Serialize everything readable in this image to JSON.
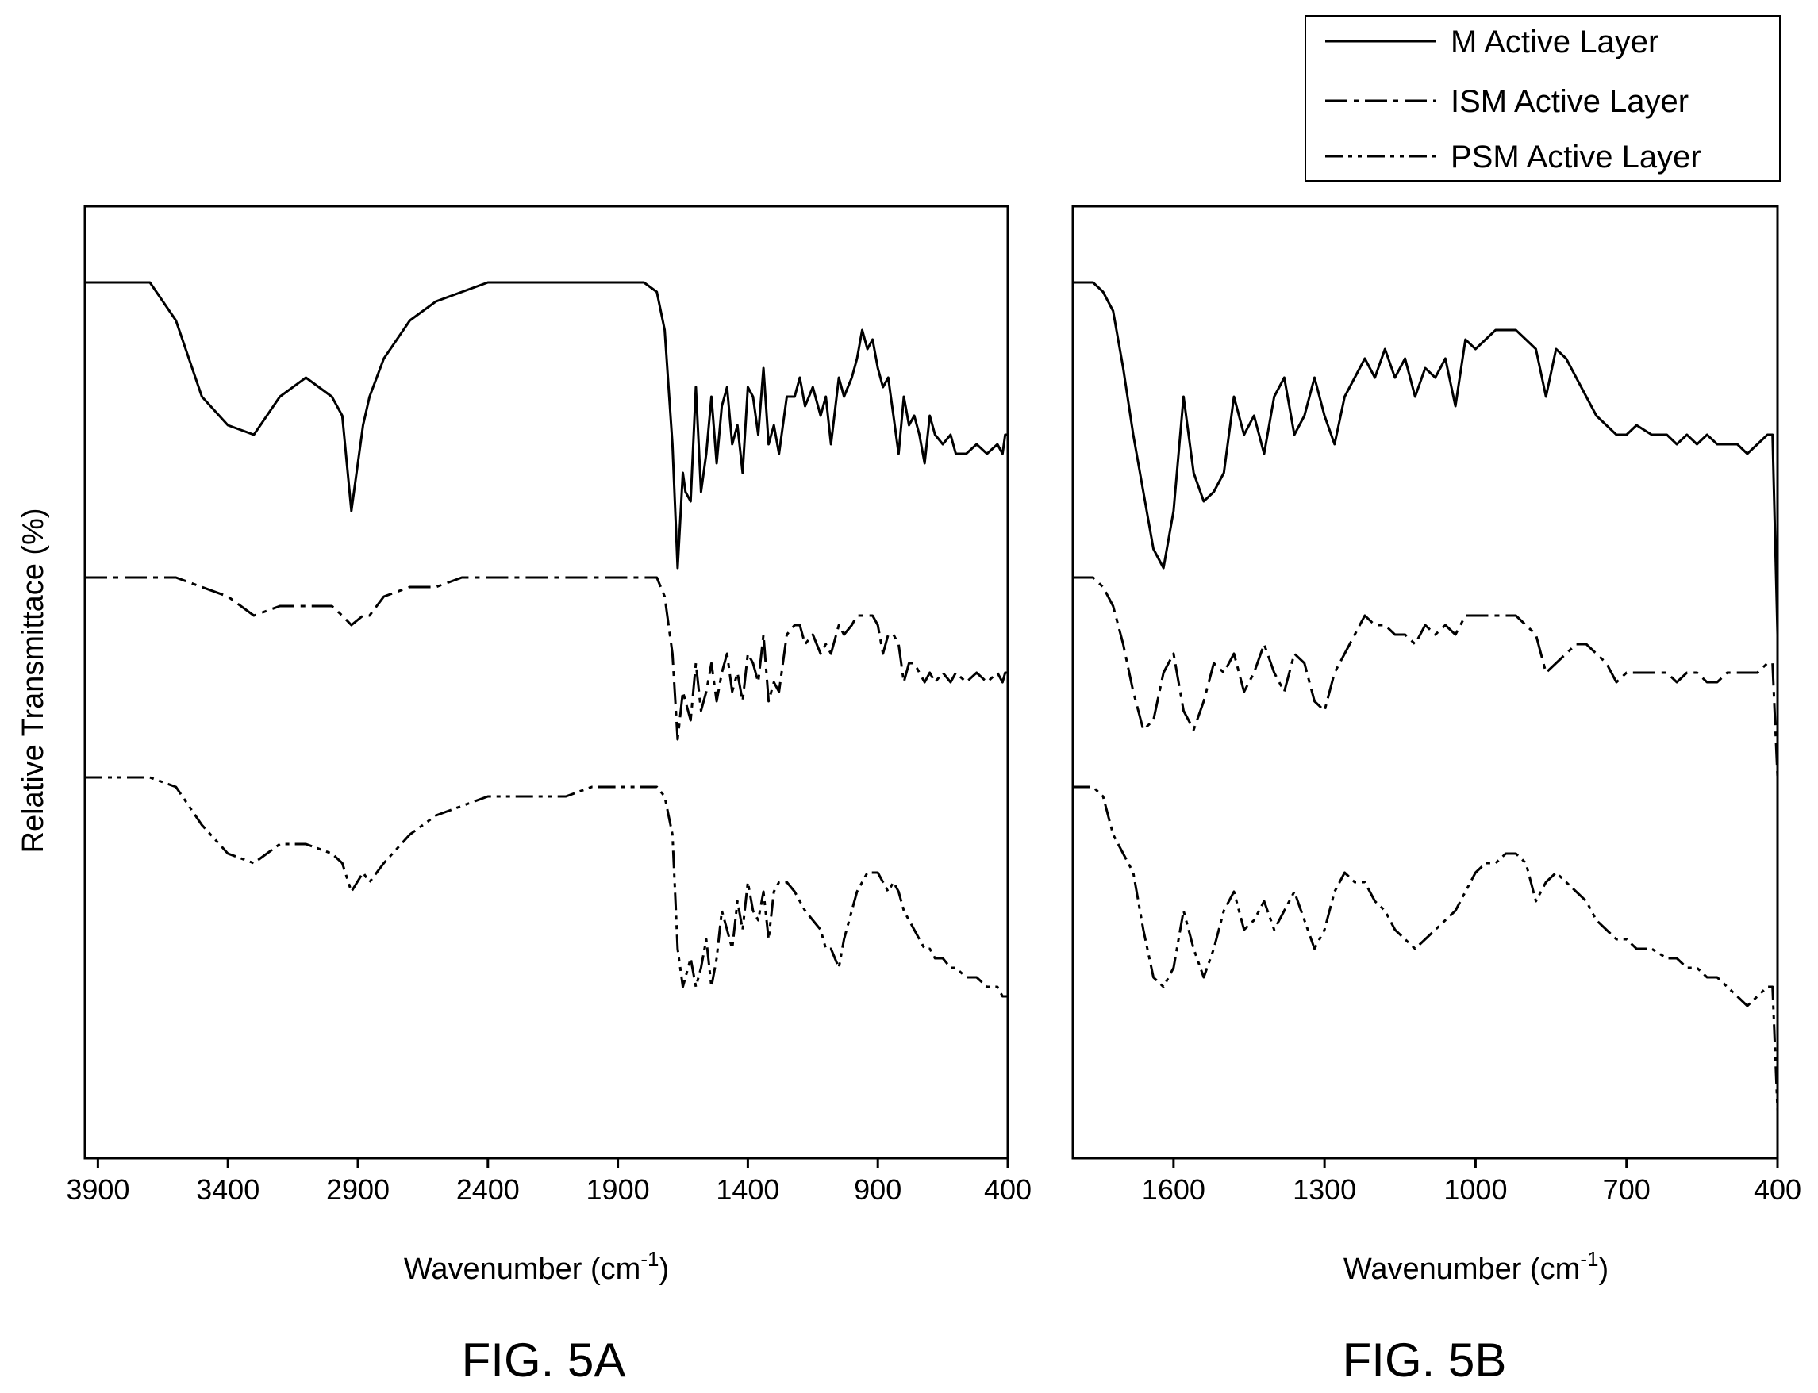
{
  "legend": {
    "entries": [
      {
        "label": "M Active Layer",
        "dash": "solid"
      },
      {
        "label": "ISM Active Layer",
        "dash": "dash-dot"
      },
      {
        "label": "PSM Active Layer",
        "dash": "dash-dot-dot"
      }
    ],
    "placement": "top-right"
  },
  "ylabel": "Relative Transmittace (%)",
  "chart_data": [
    {
      "type": "line",
      "panel": "FIG. 5A",
      "xlabel_main": "Wavenumber (cm",
      "xlabel_sup": "-1",
      "xlabel_end": ")",
      "xlim": [
        3950,
        400
      ],
      "ylim": [
        0,
        100
      ],
      "xticks": [
        3900,
        3400,
        2900,
        2400,
        1900,
        1400,
        900,
        400
      ],
      "grid": false,
      "yticks_shown": false,
      "series": [
        {
          "name": "M Active Layer",
          "dash": "solid",
          "x": [
            3950,
            3700,
            3600,
            3500,
            3400,
            3300,
            3200,
            3100,
            3000,
            2960,
            2925,
            2880,
            2855,
            2800,
            2700,
            2600,
            2500,
            2400,
            2300,
            2200,
            2100,
            2000,
            1900,
            1800,
            1750,
            1720,
            1690,
            1670,
            1650,
            1640,
            1620,
            1600,
            1580,
            1560,
            1540,
            1520,
            1500,
            1480,
            1460,
            1440,
            1420,
            1400,
            1380,
            1360,
            1340,
            1320,
            1300,
            1280,
            1250,
            1220,
            1200,
            1180,
            1150,
            1120,
            1100,
            1080,
            1050,
            1030,
            1000,
            980,
            960,
            940,
            920,
            900,
            880,
            860,
            840,
            820,
            800,
            780,
            760,
            740,
            720,
            700,
            680,
            650,
            620,
            600,
            560,
            520,
            480,
            440,
            420,
            410,
            400
          ],
          "y": [
            92,
            92,
            88,
            80,
            77,
            76,
            80,
            82,
            80,
            78,
            68,
            77,
            80,
            84,
            88,
            90,
            91,
            92,
            92,
            92,
            92,
            92,
            92,
            92,
            91,
            87,
            75,
            62,
            72,
            70,
            69,
            81,
            70,
            74,
            80,
            73,
            79,
            81,
            75,
            77,
            72,
            81,
            80,
            76,
            83,
            75,
            77,
            74,
            80,
            80,
            82,
            79,
            81,
            78,
            80,
            75,
            82,
            80,
            82,
            84,
            87,
            85,
            86,
            83,
            81,
            82,
            78,
            74,
            80,
            77,
            78,
            76,
            73,
            78,
            76,
            75,
            76,
            74,
            74,
            75,
            74,
            75,
            74,
            76,
            76
          ]
        },
        {
          "name": "ISM Active Layer",
          "dash": "dash-dot",
          "x": [
            3950,
            3700,
            3600,
            3500,
            3400,
            3300,
            3200,
            3100,
            3000,
            2960,
            2925,
            2880,
            2855,
            2800,
            2700,
            2600,
            2500,
            2400,
            2300,
            2200,
            2100,
            2000,
            1900,
            1800,
            1750,
            1720,
            1690,
            1670,
            1650,
            1640,
            1620,
            1600,
            1580,
            1560,
            1540,
            1520,
            1500,
            1480,
            1460,
            1440,
            1420,
            1400,
            1380,
            1360,
            1340,
            1320,
            1300,
            1280,
            1250,
            1220,
            1200,
            1180,
            1150,
            1120,
            1100,
            1080,
            1050,
            1030,
            1000,
            980,
            960,
            940,
            920,
            900,
            880,
            860,
            840,
            820,
            800,
            780,
            760,
            740,
            720,
            700,
            680,
            650,
            620,
            600,
            560,
            520,
            480,
            440,
            420,
            410,
            400
          ],
          "y": [
            61,
            61,
            61,
            60,
            59,
            57,
            58,
            58,
            58,
            57,
            56,
            57,
            57,
            59,
            60,
            60,
            61,
            61,
            61,
            61,
            61,
            61,
            61,
            61,
            61,
            59,
            53,
            44,
            49,
            48,
            46,
            52,
            47,
            49,
            52,
            48,
            51,
            53,
            49,
            51,
            48,
            53,
            52,
            50,
            55,
            48,
            50,
            49,
            55,
            56,
            56,
            54,
            55,
            53,
            54,
            53,
            56,
            55,
            56,
            57,
            57,
            57,
            57,
            56,
            53,
            55,
            55,
            54,
            50,
            52,
            52,
            51,
            50,
            51,
            50,
            51,
            50,
            51,
            50,
            51,
            50,
            51,
            50,
            51,
            51
          ]
        },
        {
          "name": "PSM Active Layer",
          "dash": "dash-dot-dot",
          "x": [
            3950,
            3700,
            3600,
            3500,
            3400,
            3300,
            3200,
            3100,
            3000,
            2960,
            2925,
            2880,
            2855,
            2800,
            2700,
            2600,
            2500,
            2400,
            2300,
            2200,
            2100,
            2000,
            1900,
            1800,
            1750,
            1720,
            1690,
            1670,
            1650,
            1640,
            1620,
            1600,
            1580,
            1560,
            1540,
            1520,
            1500,
            1480,
            1460,
            1440,
            1420,
            1400,
            1380,
            1360,
            1340,
            1320,
            1300,
            1280,
            1250,
            1220,
            1200,
            1180,
            1150,
            1120,
            1100,
            1080,
            1050,
            1030,
            1000,
            980,
            960,
            940,
            920,
            900,
            880,
            860,
            840,
            820,
            800,
            780,
            760,
            740,
            720,
            700,
            680,
            650,
            620,
            600,
            560,
            520,
            480,
            440,
            420,
            410,
            400
          ],
          "y": [
            40,
            40,
            39,
            35,
            32,
            31,
            33,
            33,
            32,
            31,
            28,
            30,
            29,
            31,
            34,
            36,
            37,
            38,
            38,
            38,
            38,
            39,
            39,
            39,
            39,
            38,
            34,
            22,
            18,
            19,
            21,
            18,
            20,
            23,
            18,
            21,
            26,
            24,
            22,
            27,
            24,
            29,
            26,
            25,
            28,
            23,
            28,
            29,
            29,
            28,
            27,
            26,
            25,
            24,
            22,
            22,
            20,
            23,
            26,
            28,
            29,
            30,
            30,
            30,
            29,
            28,
            29,
            28,
            26,
            25,
            24,
            23,
            22,
            22,
            21,
            21,
            20,
            20,
            19,
            19,
            18,
            18,
            17,
            17,
            17
          ]
        }
      ]
    },
    {
      "type": "line",
      "panel": "FIG. 5B",
      "xlabel_main": "Wavenumber (cm",
      "xlabel_sup": "-1",
      "xlabel_end": ")",
      "xlim": [
        1800,
        400
      ],
      "ylim": [
        0,
        100
      ],
      "xticks": [
        1600,
        1300,
        1000,
        700,
        400
      ],
      "grid": false,
      "yticks_shown": false,
      "series": [
        {
          "name": "M Active Layer",
          "dash": "solid",
          "x": [
            1800,
            1760,
            1740,
            1720,
            1700,
            1680,
            1660,
            1640,
            1620,
            1600,
            1580,
            1560,
            1540,
            1520,
            1500,
            1480,
            1460,
            1440,
            1420,
            1400,
            1380,
            1360,
            1340,
            1320,
            1300,
            1280,
            1260,
            1240,
            1220,
            1200,
            1180,
            1160,
            1140,
            1120,
            1100,
            1080,
            1060,
            1040,
            1020,
            1000,
            980,
            960,
            940,
            920,
            900,
            880,
            860,
            840,
            820,
            800,
            780,
            760,
            740,
            720,
            700,
            680,
            650,
            620,
            600,
            580,
            560,
            540,
            520,
            500,
            480,
            460,
            440,
            420,
            410,
            400
          ],
          "y": [
            92,
            92,
            91,
            89,
            83,
            76,
            70,
            64,
            62,
            68,
            80,
            72,
            69,
            70,
            72,
            80,
            76,
            78,
            74,
            80,
            82,
            76,
            78,
            82,
            78,
            75,
            80,
            82,
            84,
            82,
            85,
            82,
            84,
            80,
            83,
            82,
            84,
            79,
            86,
            85,
            86,
            87,
            87,
            87,
            86,
            85,
            80,
            85,
            84,
            82,
            80,
            78,
            77,
            76,
            76,
            77,
            76,
            76,
            75,
            76,
            75,
            76,
            75,
            75,
            75,
            74,
            75,
            76,
            76,
            55
          ]
        },
        {
          "name": "ISM Active Layer",
          "dash": "dash-dot",
          "x": [
            1800,
            1760,
            1740,
            1720,
            1700,
            1680,
            1660,
            1640,
            1620,
            1600,
            1580,
            1560,
            1540,
            1520,
            1500,
            1480,
            1460,
            1440,
            1420,
            1400,
            1380,
            1360,
            1340,
            1320,
            1300,
            1280,
            1260,
            1240,
            1220,
            1200,
            1180,
            1160,
            1140,
            1120,
            1100,
            1080,
            1060,
            1040,
            1020,
            1000,
            980,
            960,
            940,
            920,
            900,
            880,
            860,
            840,
            820,
            800,
            780,
            760,
            740,
            720,
            700,
            680,
            650,
            620,
            600,
            580,
            560,
            540,
            520,
            500,
            480,
            460,
            440,
            420,
            410,
            400
          ],
          "y": [
            61,
            61,
            60,
            58,
            54,
            49,
            45,
            46,
            51,
            53,
            47,
            45,
            48,
            52,
            51,
            53,
            49,
            51,
            54,
            51,
            49,
            53,
            52,
            48,
            47,
            51,
            53,
            55,
            57,
            56,
            56,
            55,
            55,
            54,
            56,
            55,
            56,
            55,
            57,
            57,
            57,
            57,
            57,
            57,
            56,
            55,
            51,
            52,
            53,
            54,
            54,
            53,
            52,
            50,
            51,
            51,
            51,
            51,
            50,
            51,
            51,
            50,
            50,
            51,
            51,
            51,
            51,
            52,
            52,
            40
          ]
        },
        {
          "name": "PSM Active Layer",
          "dash": "dash-dot-dot",
          "x": [
            1800,
            1760,
            1740,
            1720,
            1700,
            1680,
            1660,
            1640,
            1620,
            1600,
            1580,
            1560,
            1540,
            1520,
            1500,
            1480,
            1460,
            1440,
            1420,
            1400,
            1380,
            1360,
            1340,
            1320,
            1300,
            1280,
            1260,
            1240,
            1220,
            1200,
            1180,
            1160,
            1140,
            1120,
            1100,
            1080,
            1060,
            1040,
            1020,
            1000,
            980,
            960,
            940,
            920,
            900,
            880,
            860,
            840,
            820,
            800,
            780,
            760,
            740,
            720,
            700,
            680,
            650,
            620,
            600,
            580,
            560,
            540,
            520,
            500,
            480,
            460,
            440,
            420,
            410,
            400
          ],
          "y": [
            39,
            39,
            38,
            34,
            32,
            30,
            24,
            19,
            18,
            20,
            26,
            22,
            19,
            22,
            26,
            28,
            24,
            25,
            27,
            24,
            26,
            28,
            25,
            22,
            24,
            28,
            30,
            29,
            29,
            27,
            26,
            24,
            23,
            22,
            23,
            24,
            25,
            26,
            28,
            30,
            31,
            31,
            32,
            32,
            31,
            27,
            29,
            30,
            29,
            28,
            27,
            25,
            24,
            23,
            23,
            22,
            22,
            21,
            21,
            20,
            20,
            19,
            19,
            18,
            17,
            16,
            17,
            18,
            18,
            5
          ]
        }
      ]
    }
  ]
}
